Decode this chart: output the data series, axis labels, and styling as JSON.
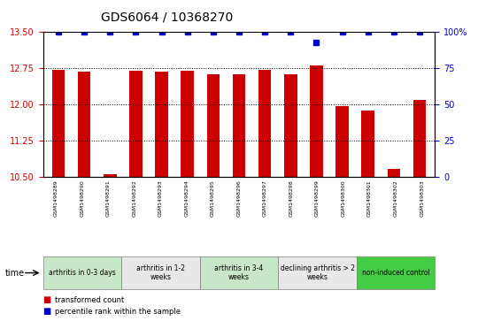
{
  "title": "GDS6064 / 10368270",
  "samples": [
    "GSM1498289",
    "GSM1498290",
    "GSM1498291",
    "GSM1498292",
    "GSM1498293",
    "GSM1498294",
    "GSM1498295",
    "GSM1498296",
    "GSM1498297",
    "GSM1498298",
    "GSM1498299",
    "GSM1498300",
    "GSM1498301",
    "GSM1498302",
    "GSM1498303"
  ],
  "bar_values": [
    12.72,
    12.68,
    10.55,
    12.7,
    12.67,
    12.7,
    12.63,
    12.62,
    12.72,
    12.63,
    12.8,
    11.97,
    11.87,
    10.65,
    12.1
  ],
  "percentile_values": [
    100,
    100,
    100,
    100,
    100,
    100,
    100,
    100,
    100,
    100,
    93,
    100,
    100,
    100,
    100
  ],
  "bar_color": "#cc0000",
  "percentile_color": "#0000cc",
  "ylim_left": [
    10.5,
    13.5
  ],
  "ylim_right": [
    0,
    100
  ],
  "yticks_left": [
    10.5,
    11.25,
    12.0,
    12.75,
    13.5
  ],
  "yticks_right": [
    0,
    25,
    50,
    75,
    100
  ],
  "grid_color": "#000000",
  "groups": [
    {
      "label": "arthritis in 0-3 days",
      "start": 0,
      "end": 3,
      "color": "#c8e6c8"
    },
    {
      "label": "arthritis in 1-2\nweeks",
      "start": 3,
      "end": 6,
      "color": "#e8e8e8"
    },
    {
      "label": "arthritis in 3-4\nweeks",
      "start": 6,
      "end": 9,
      "color": "#c8e6c8"
    },
    {
      "label": "declining arthritis > 2\nweeks",
      "start": 9,
      "end": 12,
      "color": "#e8e8e8"
    },
    {
      "label": "non-induced control",
      "start": 12,
      "end": 15,
      "color": "#44cc44"
    }
  ],
  "legend_items": [
    {
      "label": "transformed count",
      "color": "#cc0000"
    },
    {
      "label": "percentile rank within the sample",
      "color": "#0000cc"
    }
  ],
  "time_label": "time",
  "background_color": "#ffffff",
  "bar_width": 0.5
}
